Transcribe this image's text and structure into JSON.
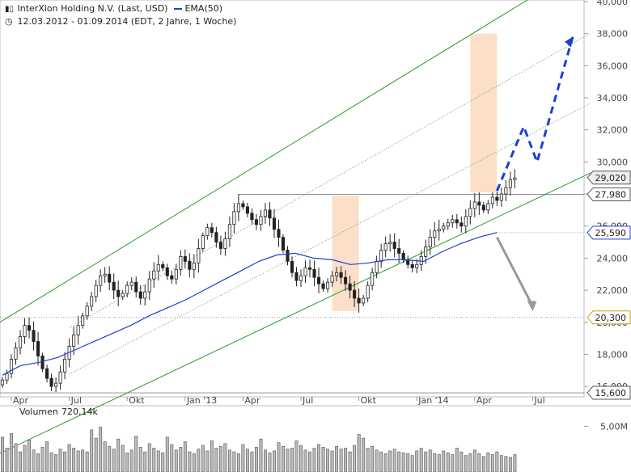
{
  "header": {
    "title": "InterXion Holding N.V. (Last, USD)",
    "ema_legend": "EMA(50)",
    "period": "12.03.2012 - 01.09.2014 (EDT, 2 Jahre, 1 Woche)",
    "chart_icon": "candlestick-icon",
    "clock_icon": "clock-icon"
  },
  "volume_label": "Volumen",
  "volume_value": "720,14k",
  "colors": {
    "channel": "#2a9a2a",
    "ema": "#1f3fd1",
    "forecast_up": "#1f3fd1",
    "forecast_down": "#999999",
    "highlight": "#fbd9bf",
    "candle": "#222222"
  },
  "chart_data": {
    "type": "candlestick",
    "x_ticks": [
      "Apr",
      "Jul",
      "Okt",
      "Jan '13",
      "Apr",
      "Jul",
      "Okt",
      "Jan '14",
      "Apr",
      "Jul"
    ],
    "y_ticks": [
      "16,000",
      "18,000",
      "20,000",
      "22,000",
      "24,000",
      "26,000",
      "28,000",
      "30,000",
      "32,000",
      "34,000",
      "36,000",
      "38,000",
      "40,000"
    ],
    "ylim": [
      15.35,
      40.1
    ],
    "price_labels": [
      {
        "value": 29.02,
        "label": "29,020"
      },
      {
        "value": 27.98,
        "label": "27,980"
      },
      {
        "value": 25.59,
        "label": "25,590"
      },
      {
        "value": 20.3,
        "label": "20,300"
      },
      {
        "value": 15.6,
        "label": "15,600"
      }
    ],
    "close": [
      16.4,
      16.8,
      17.7,
      18.4,
      19.1,
      19.8,
      19.5,
      18.8,
      17.9,
      17.1,
      16.5,
      16.0,
      16.2,
      16.9,
      17.7,
      18.5,
      19.2,
      19.8,
      20.4,
      21.0,
      21.6,
      22.3,
      22.9,
      23.0,
      22.5,
      22.0,
      21.6,
      21.8,
      22.3,
      22.5,
      21.9,
      21.5,
      21.9,
      22.7,
      23.2,
      23.6,
      23.4,
      22.9,
      22.7,
      23.3,
      24.1,
      23.8,
      23.3,
      23.7,
      24.6,
      25.4,
      25.9,
      25.6,
      25.0,
      24.6,
      25.2,
      26.1,
      26.9,
      27.4,
      27.2,
      26.8,
      26.4,
      26.1,
      26.6,
      27.0,
      26.5,
      25.8,
      25.3,
      24.5,
      23.8,
      23.1,
      22.6,
      22.9,
      23.4,
      23.3,
      22.8,
      22.4,
      22.1,
      22.5,
      22.9,
      23.1,
      22.8,
      22.4,
      22.0,
      21.5,
      21.2,
      21.5,
      22.3,
      23.1,
      23.8,
      24.5,
      24.9,
      25.0,
      24.6,
      24.3,
      23.9,
      23.6,
      23.4,
      23.6,
      24.1,
      24.7,
      25.3,
      25.7,
      25.8,
      26.0,
      26.2,
      26.4,
      26.2,
      26.0,
      26.6,
      27.1,
      27.5,
      27.3,
      27.0,
      27.4,
      27.8,
      27.6,
      28.0,
      28.4,
      28.9,
      29.0
    ],
    "ema50": [
      16.7,
      17.3,
      17.5,
      17.8,
      18.3,
      18.8,
      19.3,
      19.8,
      20.4,
      20.9,
      21.4,
      22.0,
      22.6,
      23.2,
      23.8,
      24.2,
      24.3,
      24.0,
      23.9,
      23.6,
      23.7,
      23.9,
      23.9,
      23.8,
      24.4,
      24.9,
      25.3,
      25.6
    ],
    "ema50_x_start": 0,
    "ema50_x_end": 111,
    "channel_lower": [
      [
        0.0,
        11.9
      ],
      [
        119.0,
        27.6
      ]
    ],
    "channel_upper": [
      [
        0.0,
        20.1
      ],
      [
        119.0,
        40.3
      ]
    ],
    "highlight_ranges": [
      [
        74,
        80
      ],
      [
        105,
        111
      ]
    ],
    "forecast_up": [
      [
        111,
        28.2
      ],
      [
        117,
        32.2
      ],
      [
        120,
        30.0
      ],
      [
        128,
        37.8
      ]
    ],
    "forecast_down": [
      [
        111,
        25.3
      ],
      [
        119,
        20.7
      ]
    ],
    "volume": [
      3.8,
      2.6,
      4.2,
      3.1,
      2.2,
      2.9,
      3.5,
      2.4,
      2.0,
      2.7,
      3.3,
      2.1,
      1.9,
      2.5,
      2.2,
      3.0,
      2.6,
      2.3,
      2.4,
      2.2,
      4.6,
      3.7,
      4.9,
      3.3,
      2.8,
      2.5,
      3.6,
      2.9,
      2.1,
      2.4,
      3.9,
      2.7,
      2.2,
      3.1,
      2.6,
      2.3,
      2.1,
      3.8,
      3.0,
      2.4,
      2.7,
      3.3,
      2.2,
      2.0,
      2.5,
      2.9,
      2.3,
      3.4,
      2.6,
      2.8,
      3.1,
      2.4,
      2.2,
      2.0,
      3.0,
      2.5,
      2.2,
      2.7,
      3.6,
      2.4,
      2.1,
      2.3,
      3.2,
      2.8,
      2.5,
      2.6,
      3.4,
      2.9,
      2.4,
      2.2,
      2.6,
      3.0,
      2.7,
      2.5,
      2.3,
      2.8,
      2.5,
      2.6,
      2.2,
      2.9,
      4.1,
      3.7,
      2.6,
      2.8,
      2.4,
      2.2,
      2.0,
      2.3,
      2.5,
      2.2,
      2.1,
      2.0,
      1.8,
      2.3,
      2.6,
      2.2,
      2.4,
      2.0,
      1.9,
      2.3,
      2.1,
      1.9,
      2.6,
      2.2,
      1.8,
      2.0,
      2.4,
      2.0,
      1.7,
      2.1,
      1.9,
      2.2,
      1.8,
      1.7,
      1.6,
      1.9
    ],
    "volume_ylim": [
      0,
      6.0
    ],
    "volume_ticks": [
      "5,00M"
    ]
  }
}
